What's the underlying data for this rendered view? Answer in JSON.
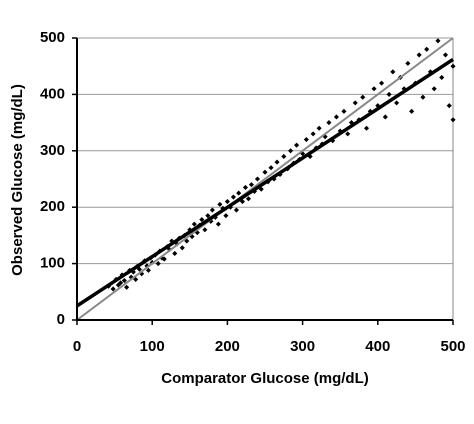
{
  "chart_data": {
    "type": "scatter",
    "xlabel": "Comparator Glucose (mg/dL)",
    "ylabel": "Observed Glucose (mg/dL)",
    "xlim": [
      0,
      500
    ],
    "ylim": [
      0,
      500
    ],
    "xticks": [
      0,
      100,
      200,
      300,
      400,
      500
    ],
    "yticks": [
      0,
      100,
      200,
      300,
      400,
      500
    ],
    "grid": true,
    "series": [
      {
        "color": "#000000",
        "x": [
          42,
          48,
          52,
          55,
          58,
          60,
          63,
          66,
          70,
          72,
          75,
          78,
          80,
          83,
          86,
          90,
          93,
          95,
          98,
          100,
          104,
          108,
          110,
          113,
          116,
          120,
          123,
          126,
          130,
          133,
          136,
          140,
          143,
          146,
          150,
          153,
          156,
          160,
          163,
          166,
          170,
          174,
          178,
          180,
          184,
          188,
          190,
          194,
          198,
          200,
          204,
          208,
          212,
          215,
          220,
          224,
          228,
          232,
          236,
          240,
          245,
          250,
          254,
          258,
          262,
          266,
          270,
          275,
          280,
          284,
          288,
          292,
          296,
          300,
          305,
          310,
          314,
          318,
          322,
          326,
          330,
          335,
          340,
          345,
          350,
          355,
          360,
          365,
          370,
          375,
          380,
          385,
          390,
          395,
          400,
          405,
          410,
          415,
          420,
          425,
          430,
          435,
          440,
          445,
          450,
          455,
          460,
          465,
          470,
          475,
          480,
          485,
          490,
          495,
          500,
          500
        ],
        "values": [
          60,
          55,
          72,
          62,
          66,
          80,
          70,
          58,
          88,
          76,
          85,
          72,
          95,
          90,
          82,
          105,
          96,
          88,
          110,
          102,
          115,
          100,
          122,
          110,
          108,
          130,
          125,
          140,
          118,
          135,
          145,
          128,
          150,
          140,
          160,
          148,
          170,
          155,
          168,
          178,
          160,
          185,
          175,
          195,
          182,
          170,
          205,
          198,
          185,
          210,
          200,
          218,
          195,
          225,
          210,
          235,
          215,
          240,
          228,
          250,
          232,
          262,
          245,
          270,
          250,
          280,
          258,
          290,
          268,
          300,
          278,
          310,
          285,
          295,
          320,
          290,
          330,
          305,
          340,
          312,
          325,
          350,
          318,
          360,
          335,
          370,
          330,
          350,
          385,
          355,
          395,
          340,
          370,
          410,
          380,
          420,
          360,
          400,
          440,
          385,
          430,
          410,
          455,
          370,
          420,
          470,
          395,
          480,
          440,
          410,
          495,
          430,
          470,
          380,
          450,
          355
        ]
      }
    ],
    "lines": [
      {
        "color": "#888888",
        "x": [
          0,
          500
        ],
        "values": [
          0,
          500
        ]
      },
      {
        "color": "#000000",
        "x": [
          0,
          500
        ],
        "values": [
          25,
          462
        ]
      }
    ]
  }
}
